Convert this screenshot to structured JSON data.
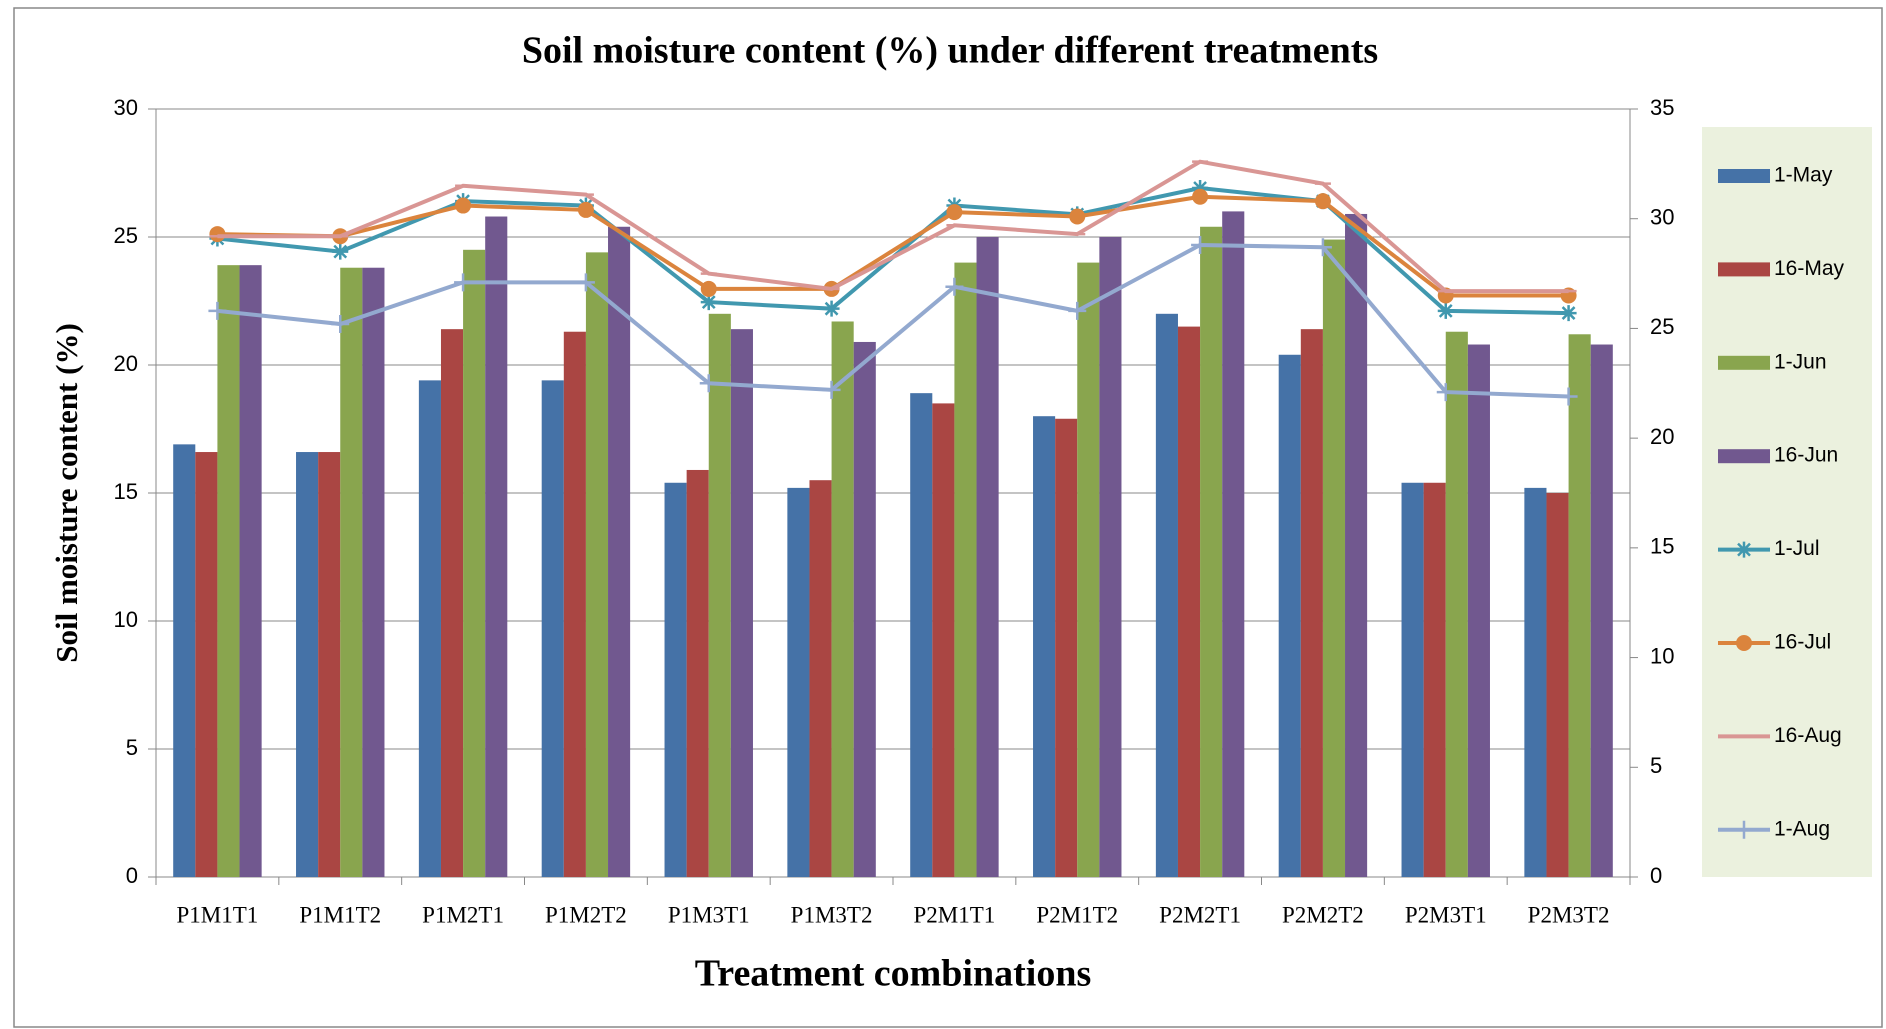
{
  "chart_data": {
    "type": "bar",
    "title": "Soil moisture content (%) under different treatments",
    "x_label": "Treatment combinations",
    "y_label": "Soil moisture content (%)",
    "categories": [
      "P1M1T1",
      "P1M1T2",
      "P1M2T1",
      "P1M2T2",
      "P1M3T1",
      "P1M3T2",
      "P2M1T1",
      "P2M1T2",
      "P2M2T1",
      "P2M2T2",
      "P2M3T1",
      "P2M3T2"
    ],
    "ylim": [
      0,
      30
    ],
    "yticks": [
      0,
      5,
      10,
      15,
      20,
      25,
      30
    ],
    "y2lim": [
      0,
      35
    ],
    "y2ticks": [
      0,
      5,
      10,
      15,
      20,
      25,
      30,
      35
    ],
    "grid": true,
    "legend": "right",
    "series": [
      {
        "name": "1-May",
        "color": "#4572a7",
        "kind": "bar",
        "values": [
          16.9,
          16.6,
          19.4,
          19.4,
          15.4,
          15.2,
          18.9,
          18.0,
          22.0,
          20.4,
          15.4,
          15.2
        ]
      },
      {
        "name": "16-May",
        "color": "#aa4643",
        "kind": "bar",
        "values": [
          16.6,
          16.6,
          21.4,
          21.3,
          15.9,
          15.5,
          18.5,
          17.9,
          21.5,
          21.4,
          15.4,
          15.0
        ]
      },
      {
        "name": "1-Jun",
        "color": "#89a54e",
        "kind": "bar",
        "values": [
          23.9,
          23.8,
          24.5,
          24.4,
          22.0,
          21.7,
          24.0,
          24.0,
          25.4,
          24.9,
          21.3,
          21.2
        ]
      },
      {
        "name": "16-Jun",
        "color": "#71588f",
        "kind": "bar",
        "values": [
          23.9,
          23.8,
          25.8,
          25.4,
          21.4,
          20.9,
          25.0,
          25.0,
          26.0,
          25.9,
          20.8,
          20.8
        ]
      },
      {
        "name": "1-Jul",
        "color": "#4198af",
        "kind": "line",
        "marker": "star",
        "axis": "y2",
        "values": [
          29.1,
          28.5,
          30.8,
          30.6,
          26.2,
          25.9,
          30.6,
          30.2,
          31.4,
          30.8,
          25.8,
          25.7
        ]
      },
      {
        "name": "16-Jul",
        "color": "#db843d",
        "kind": "line",
        "marker": "circle",
        "axis": "y2",
        "values": [
          29.3,
          29.2,
          30.6,
          30.4,
          26.8,
          26.8,
          30.3,
          30.1,
          31.0,
          30.8,
          26.5,
          26.5
        ]
      },
      {
        "name": "16-Aug",
        "color": "#d99694",
        "kind": "line",
        "marker": "dash",
        "axis": "y2",
        "values": [
          29.2,
          29.2,
          31.5,
          31.1,
          27.5,
          26.8,
          29.7,
          29.3,
          32.6,
          31.6,
          26.7,
          26.7
        ]
      },
      {
        "name": "1-Aug",
        "color": "#93a9cf",
        "kind": "line",
        "marker": "plus",
        "axis": "y2",
        "values": [
          25.8,
          25.2,
          27.1,
          27.1,
          22.5,
          22.2,
          26.9,
          25.8,
          28.8,
          28.7,
          22.1,
          21.9
        ]
      }
    ]
  }
}
